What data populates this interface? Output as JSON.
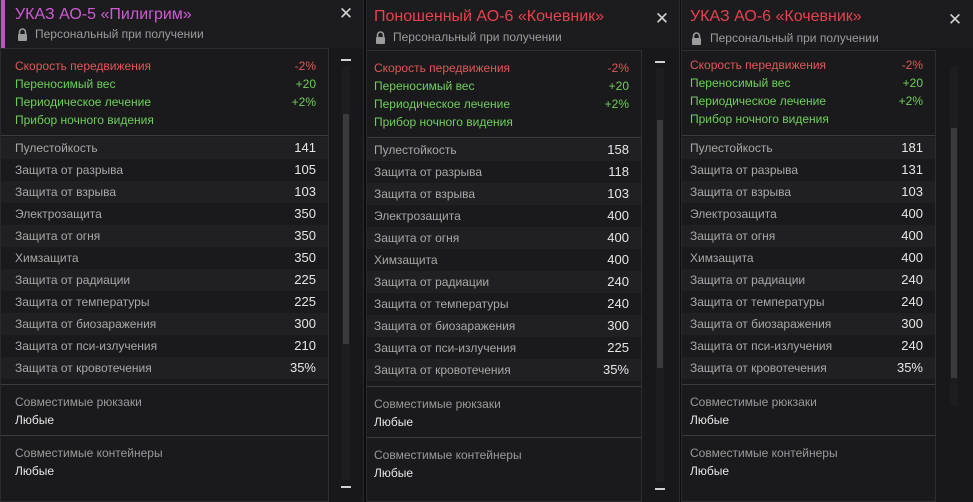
{
  "cards": [
    {
      "title": "УКАЗ АО-5 «Пилигрим»",
      "title_color": "#d05ad6",
      "subtitle": "Персональный при получении",
      "close": "✕",
      "mods": [
        {
          "label": "Скорость передвижения",
          "value": "-2%",
          "kind": "neg"
        },
        {
          "label": "Переносимый вес",
          "value": "+20",
          "kind": "pos"
        },
        {
          "label": "Периодическое лечение",
          "value": "+2%",
          "kind": "pos"
        },
        {
          "label": "Прибор ночного видения",
          "value": "",
          "kind": "pos"
        }
      ],
      "stats": [
        {
          "label": "Пулестойкость",
          "value": "141"
        },
        {
          "label": "Защита от разрыва",
          "value": "105"
        },
        {
          "label": "Защита от взрыва",
          "value": "103"
        },
        {
          "label": "Электрозащита",
          "value": "350"
        },
        {
          "label": "Защита от огня",
          "value": "350"
        },
        {
          "label": "Химзащита",
          "value": "350"
        },
        {
          "label": "Защита от радиации",
          "value": "225"
        },
        {
          "label": "Защита от температуры",
          "value": "225"
        },
        {
          "label": "Защита от биозаражения",
          "value": "300"
        },
        {
          "label": "Защита от пси-излучения",
          "value": "210"
        },
        {
          "label": "Защита от кровотечения",
          "value": "35%"
        }
      ],
      "backpacks_label": "Совместимые рюкзаки",
      "backpacks_value": "Любые",
      "containers_label": "Совместимые контейнеры",
      "containers_value": "Любые",
      "scroll_level": 0.55
    },
    {
      "title": "Поношенный АО-6 «Кочевник»",
      "title_color": "#e8404e",
      "subtitle": "Персональный при получении",
      "close": "✕",
      "mods": [
        {
          "label": "Скорость передвижения",
          "value": "-2%",
          "kind": "neg"
        },
        {
          "label": "Переносимый вес",
          "value": "+20",
          "kind": "pos"
        },
        {
          "label": "Периодическое лечение",
          "value": "+2%",
          "kind": "pos"
        },
        {
          "label": "Прибор ночного видения",
          "value": "",
          "kind": "pos"
        }
      ],
      "stats": [
        {
          "label": "Пулестойкость",
          "value": "158"
        },
        {
          "label": "Защита от разрыва",
          "value": "118"
        },
        {
          "label": "Защита от взрыва",
          "value": "103"
        },
        {
          "label": "Электрозащита",
          "value": "400"
        },
        {
          "label": "Защита от огня",
          "value": "400"
        },
        {
          "label": "Химзащита",
          "value": "400"
        },
        {
          "label": "Защита от радиации",
          "value": "240"
        },
        {
          "label": "Защита от температуры",
          "value": "240"
        },
        {
          "label": "Защита от биозаражения",
          "value": "300"
        },
        {
          "label": "Защита от пси-излучения",
          "value": "225"
        },
        {
          "label": "Защита от кровотечения",
          "value": "35%"
        }
      ],
      "backpacks_label": "Совместимые рюкзаки",
      "backpacks_value": "Любые",
      "containers_label": "Совместимые контейнеры",
      "containers_value": "Любые",
      "scroll_level": 0.55
    },
    {
      "title": "УКАЗ АО-6 «Кочевник»",
      "title_color": "#e8404e",
      "subtitle": "Персональный при получении",
      "close": "✕",
      "mods": [
        {
          "label": "Скорость передвижения",
          "value": "-2%",
          "kind": "neg"
        },
        {
          "label": "Переносимый вес",
          "value": "+20",
          "kind": "pos"
        },
        {
          "label": "Периодическое лечение",
          "value": "+2%",
          "kind": "pos"
        },
        {
          "label": "Прибор ночного видения",
          "value": "",
          "kind": "pos"
        }
      ],
      "stats": [
        {
          "label": "Пулестойкость",
          "value": "181"
        },
        {
          "label": "Защита от разрыва",
          "value": "131"
        },
        {
          "label": "Защита от взрыва",
          "value": "103"
        },
        {
          "label": "Электрозащита",
          "value": "400"
        },
        {
          "label": "Защита от огня",
          "value": "400"
        },
        {
          "label": "Химзащита",
          "value": "400"
        },
        {
          "label": "Защита от радиации",
          "value": "240"
        },
        {
          "label": "Защита от температуры",
          "value": "240"
        },
        {
          "label": "Защита от биозаражения",
          "value": "300"
        },
        {
          "label": "Защита от пси-излучения",
          "value": "240"
        },
        {
          "label": "Защита от кровотечения",
          "value": "35%"
        }
      ],
      "backpacks_label": "Совместимые рюкзаки",
      "backpacks_value": "Любые",
      "containers_label": "Совместимые контейнеры",
      "containers_value": "Любые",
      "scroll_level": 0.55
    }
  ]
}
